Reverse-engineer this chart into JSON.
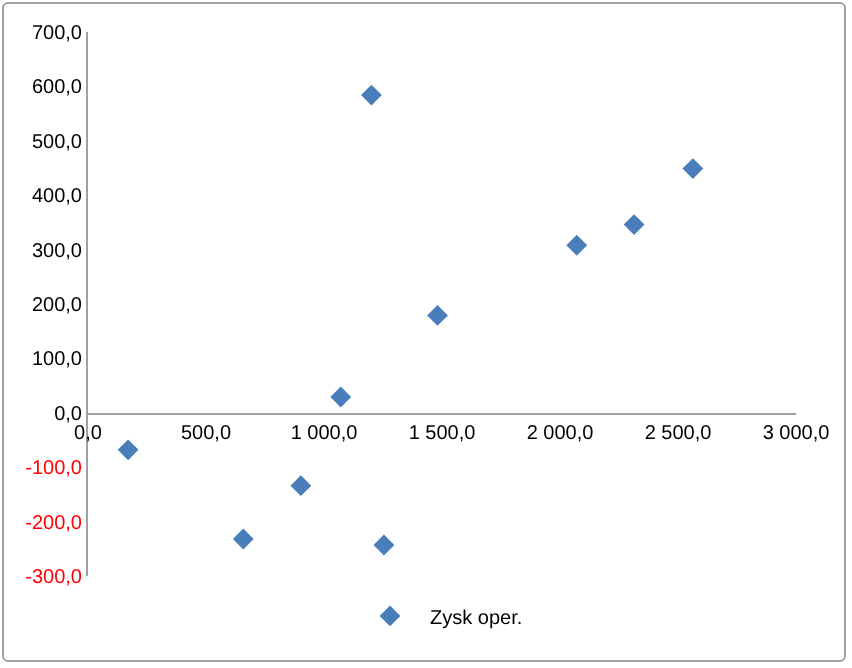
{
  "chart_data": {
    "type": "scatter",
    "x": [
      170,
      658,
      902,
      1071,
      1201,
      1254,
      1481,
      2071,
      2314,
      2563
    ],
    "series": [
      {
        "name": "Zysk oper.",
        "color": "#4a7ebb",
        "values": [
          -68,
          -232,
          -134,
          29,
          584,
          -243,
          179,
          308,
          346,
          449
        ]
      }
    ],
    "xlim": [
      0,
      3000
    ],
    "xticks": [
      {
        "value": 0,
        "label": "0,0"
      },
      {
        "value": 500,
        "label": "500,0"
      },
      {
        "value": 1000,
        "label": "1 000,0"
      },
      {
        "value": 1500,
        "label": "1 500,0"
      },
      {
        "value": 2000,
        "label": "2 000,0"
      },
      {
        "value": 2500,
        "label": "2 500,0"
      },
      {
        "value": 3000,
        "label": "3 000,0"
      }
    ],
    "ylim": [
      -300,
      700
    ],
    "yticks": [
      {
        "value": -300,
        "label": "-300,0"
      },
      {
        "value": -200,
        "label": "-200,0"
      },
      {
        "value": -100,
        "label": "-100,0"
      },
      {
        "value": 0,
        "label": "0,0"
      },
      {
        "value": 100,
        "label": "100,0"
      },
      {
        "value": 200,
        "label": "200,0"
      },
      {
        "value": 300,
        "label": "300,0"
      },
      {
        "value": 400,
        "label": "400,0"
      },
      {
        "value": 500,
        "label": "500,0"
      },
      {
        "value": 600,
        "label": "600,0"
      },
      {
        "value": 700,
        "label": "700,0"
      }
    ],
    "grid": false,
    "legend": "bottom",
    "marker": "diamond"
  }
}
